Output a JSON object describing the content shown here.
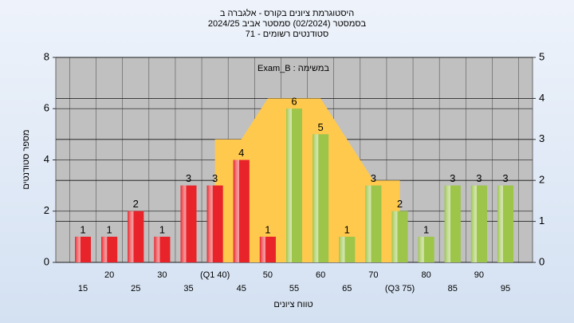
{
  "chart_data": {
    "type": "bar",
    "title": [
      "היסטוגרמת ציונים בקורס - אלגברה ב",
      "בסמסטר  (02/2024)  סמסטר אביב 2024/25",
      "סטודנטים רשומים - 71"
    ],
    "annotation": "Exam_B : במשימה",
    "xlabel": "טווח ציונים",
    "ylabel": "מספר סטודנטים",
    "categories": [
      "15",
      "20",
      "25",
      "30",
      "35",
      "(Q1 40)",
      "45",
      "50",
      "55",
      "60",
      "65",
      "70",
      "(Q3 75)",
      "80",
      "85",
      "90",
      "95"
    ],
    "values": [
      1,
      1,
      2,
      1,
      3,
      3,
      4,
      1,
      6,
      5,
      1,
      3,
      2,
      1,
      3,
      3,
      3
    ],
    "colors": [
      "#e8232a",
      "#e8232a",
      "#e8232a",
      "#e8232a",
      "#e8232a",
      "#e8232a",
      "#e8232a",
      "#e8232a",
      "#9cc54a",
      "#9cc54a",
      "#9cc54a",
      "#9cc54a",
      "#9cc54a",
      "#9cc54a",
      "#9cc54a",
      "#9cc54a",
      "#9cc54a"
    ],
    "area": {
      "axis": "y2",
      "color": "#ffc94d",
      "values": [
        null,
        null,
        null,
        null,
        null,
        3,
        3,
        4,
        4,
        4,
        3,
        2,
        2,
        null,
        null,
        null,
        null
      ]
    },
    "ylim": [
      0,
      8
    ],
    "yticks": [
      0,
      2,
      4,
      6,
      8
    ],
    "y2lim": [
      0,
      5
    ],
    "y2ticks": [
      0,
      1,
      2,
      3,
      4,
      5
    ],
    "grid": true
  }
}
